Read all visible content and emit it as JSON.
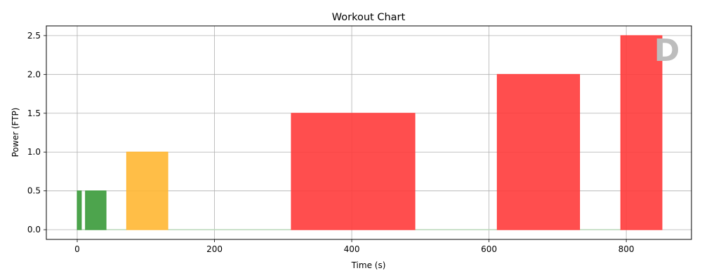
{
  "chart_data": {
    "type": "bar",
    "title": "Workout Chart",
    "xlabel": "Time (s)",
    "ylabel": "Power (FTP)",
    "xlim": [
      -45,
      895
    ],
    "ylim": [
      -0.125,
      2.625
    ],
    "xticks": [
      0,
      200,
      400,
      600,
      800
    ],
    "yticks": [
      0.0,
      0.5,
      1.0,
      1.5,
      2.0,
      2.5
    ],
    "xtick_labels": [
      "0",
      "200",
      "400",
      "600",
      "800"
    ],
    "ytick_labels": [
      "0.0",
      "0.5",
      "1.0",
      "1.5",
      "2.0",
      "2.5"
    ],
    "grid": true,
    "watermark": "D",
    "colors": {
      "green": "#3a9a3a",
      "orange": "#ffb733",
      "red": "#ff3b3b",
      "rest_line": "#b8d8b8",
      "grid": "#b0b0b0"
    },
    "intervals": [
      {
        "start": 0,
        "end": 6,
        "power": 0.5,
        "color": "green"
      },
      {
        "start": 12,
        "end": 42,
        "power": 0.5,
        "color": "green"
      },
      {
        "start": 72,
        "end": 132,
        "power": 1.0,
        "color": "orange"
      },
      {
        "start": 312,
        "end": 492,
        "power": 1.5,
        "color": "red"
      },
      {
        "start": 612,
        "end": 732,
        "power": 2.0,
        "color": "red"
      },
      {
        "start": 792,
        "end": 852,
        "power": 2.5,
        "color": "red"
      }
    ],
    "rest_segments": [
      {
        "start": 6,
        "end": 12
      },
      {
        "start": 42,
        "end": 72
      },
      {
        "start": 132,
        "end": 312
      },
      {
        "start": 492,
        "end": 612
      },
      {
        "start": 732,
        "end": 792
      }
    ]
  }
}
